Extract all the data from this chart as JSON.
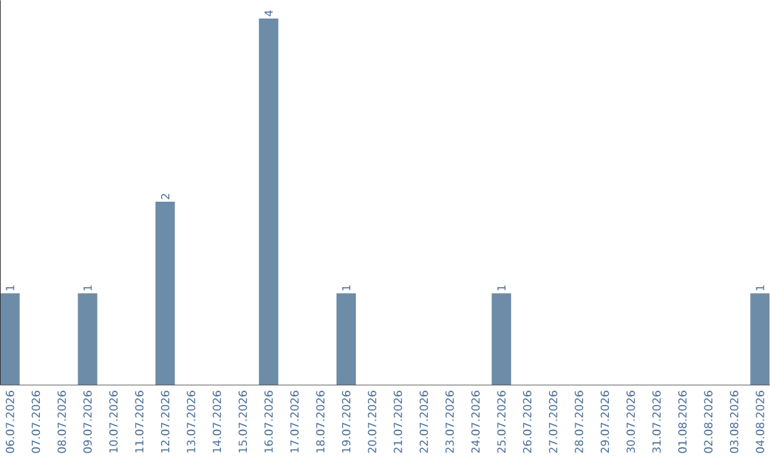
{
  "chart_data": {
    "type": "bar",
    "categories": [
      "06.07.2026",
      "07.07.2026",
      "08.07.2026",
      "09.07.2026",
      "10.07.2026",
      "11.07.2026",
      "12.07.2026",
      "13.07.2026",
      "14.07.2026",
      "15.07.2026",
      "16.07.2026",
      "17.07.2026",
      "18.07.2026",
      "19.07.2026",
      "20.07.2026",
      "21.07.2026",
      "22.07.2026",
      "23.07.2026",
      "24.07.2026",
      "25.07.2026",
      "26.07.2026",
      "27.07.2026",
      "28.07.2026",
      "29.07.2026",
      "30.07.2026",
      "31.07.2026",
      "01.08.2026",
      "02.08.2026",
      "03.08.2026",
      "04.08.2026"
    ],
    "values": [
      1,
      0,
      0,
      1,
      0,
      0,
      2,
      0,
      0,
      0,
      4,
      0,
      0,
      1,
      0,
      0,
      0,
      0,
      0,
      1,
      0,
      0,
      0,
      0,
      0,
      0,
      0,
      0,
      0,
      1
    ],
    "value_labels": [
      "1",
      null,
      null,
      "1",
      null,
      null,
      "2",
      null,
      null,
      null,
      "4",
      null,
      null,
      "1",
      null,
      null,
      null,
      null,
      null,
      "1",
      null,
      null,
      null,
      null,
      null,
      null,
      null,
      null,
      null,
      "1"
    ],
    "color": "#6d8ca8"
  }
}
